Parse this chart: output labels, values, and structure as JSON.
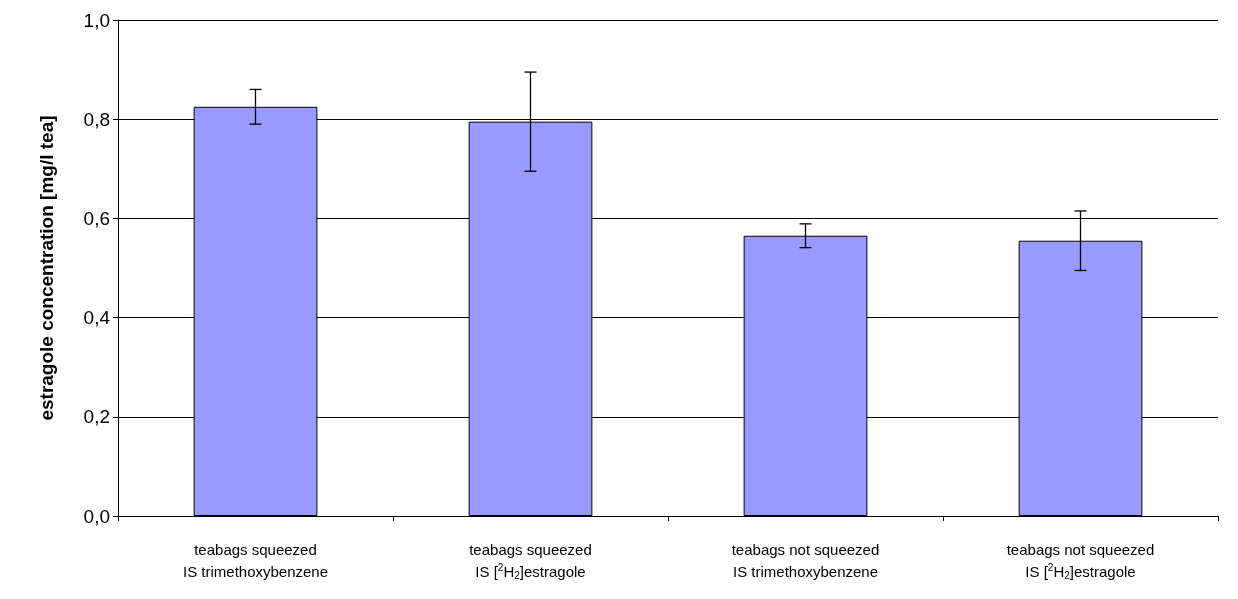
{
  "chart_data": {
    "type": "bar",
    "ylabel": "estragole concentration [mg/l tea]",
    "categories": [
      "teabags squeezed\nIS trimethoxybenzene",
      "teabags squeezed\nIS [$^{2}$H$_{2}$]estragole",
      "teabags not squeezed\nIS trimethoxybenzene",
      "teabags not squeezed\nIS [$^{2}$H$_{2}$]estragole"
    ],
    "values": [
      0.825,
      0.795,
      0.565,
      0.555
    ],
    "errors": [
      0.035,
      0.1,
      0.024,
      0.06
    ],
    "color": "#9999ff",
    "ylim": [
      0,
      1
    ],
    "yticks": [
      {
        "value": 0,
        "label": "0,0"
      },
      {
        "value": 0.2,
        "label": "0,2"
      },
      {
        "value": 0.4,
        "label": "0,4"
      },
      {
        "value": 0.6,
        "label": "0,6"
      },
      {
        "value": 0.8,
        "label": "0,8"
      },
      {
        "value": 1,
        "label": "1,0"
      }
    ],
    "grid": "y"
  }
}
